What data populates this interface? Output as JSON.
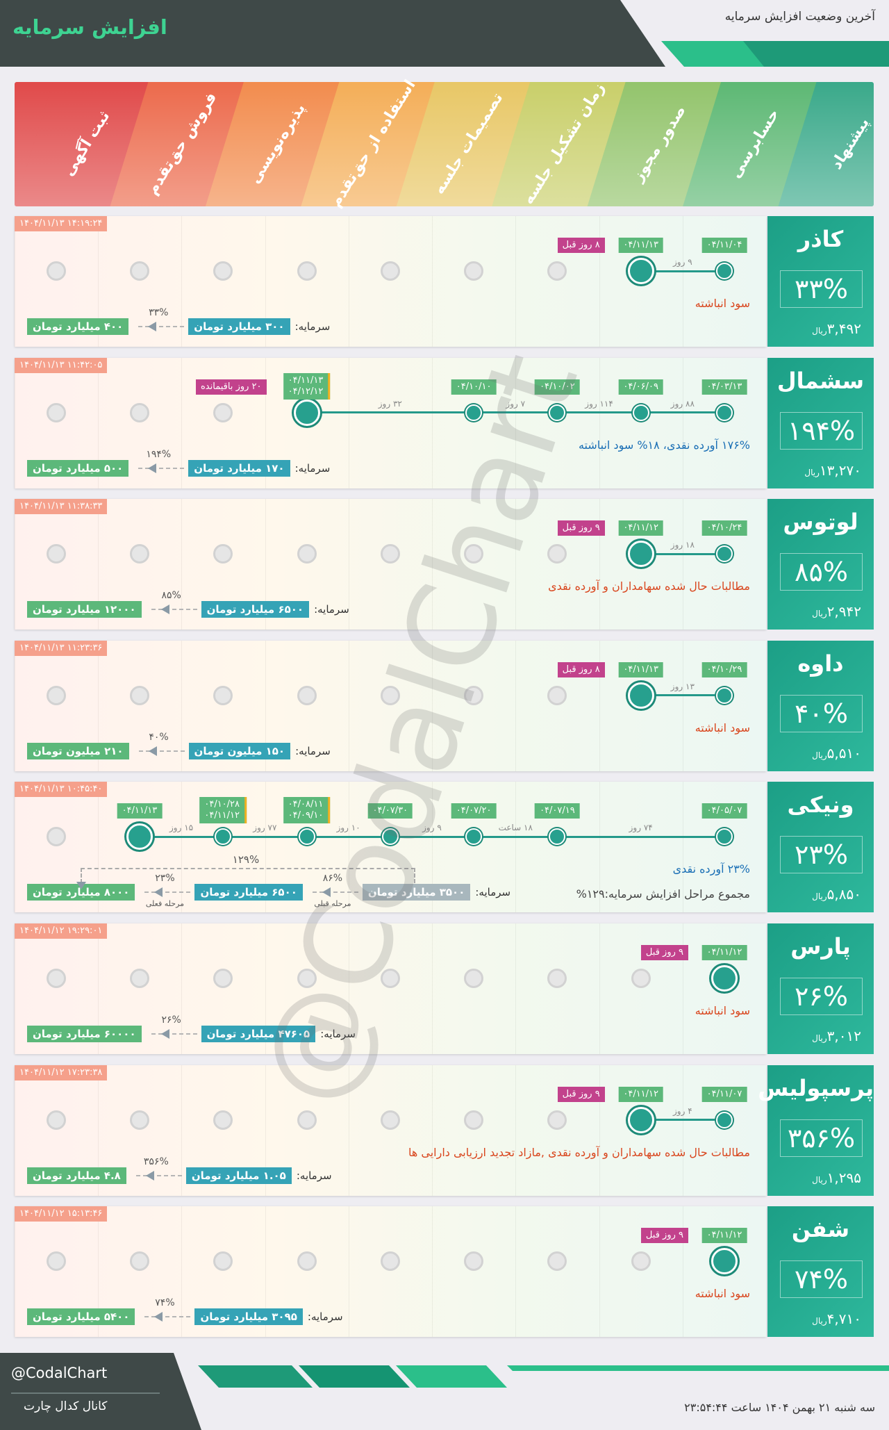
{
  "header": {
    "title": "افزایش سرمایه",
    "subtitle": "آخرین وضعیت افزایش سرمایه"
  },
  "stages": [
    "پیشنهاد",
    "حسابرسی",
    "صدور مجوز",
    "زمان تشکیل جلسه",
    "تصمیمات جلسه",
    "استفاده از حق‌تقدم",
    "پذیره‌نویسی",
    "فروش حق‌تقدم",
    "ثبت آگهی"
  ],
  "currency": "ریال",
  "capital_label": "سرمایه:",
  "watermark": "@CodalChart",
  "companies": [
    {
      "name": "کاذر",
      "percent": "۳۳%",
      "price": "۳,۴۹۲",
      "timestamp": "۱۴۰۴/۱۱/۱۳ ۱۴:۱۹:۲۴",
      "milestones": [
        [
          "۰۴/۱۱/۰۴"
        ],
        [
          "۰۴/۱۱/۱۳"
        ]
      ],
      "gaps": [
        "۹ روز"
      ],
      "badge": "۸ روز قبل",
      "description": [
        "سود انباشته"
      ],
      "capital": {
        "current": "۳۰۰ میلیارد تومان",
        "change": "۳۳%",
        "new": "۴۰۰ میلیارد تومان"
      }
    },
    {
      "name": "سشمال",
      "percent": "۱۹۴%",
      "price": "۱۳,۲۷۰",
      "timestamp": "۱۴۰۴/۱۱/۱۳ ۱۱:۴۲:۰۵",
      "milestones": [
        [
          "۰۴/۰۳/۱۳"
        ],
        [
          "۰۴/۰۶/۰۹"
        ],
        [
          "۰۴/۱۰/۰۲"
        ],
        [
          "۰۴/۱۰/۱۰"
        ],
        null,
        [
          "۰۴/۱۱/۱۳",
          "۰۴/۱۲/۱۲"
        ]
      ],
      "gaps": [
        "۸۸ روز",
        "۱۱۴ روز",
        "۷ روز",
        "۳۲ روز"
      ],
      "badge": "۲۰ روز باقیمانده",
      "description": [
        "۱۷۶% آورده نقدی، ۱۸% سود انباشته"
      ],
      "capital": {
        "current": "۱۷۰ میلیارد تومان",
        "change": "۱۹۴%",
        "new": "۵۰۰ میلیارد تومان"
      }
    },
    {
      "name": "لوتوس",
      "percent": "۸۵%",
      "price": "۲,۹۴۲",
      "timestamp": "۱۴۰۴/۱۱/۱۳ ۱۱:۳۸:۳۳",
      "milestones": [
        [
          "۰۴/۱۰/۲۴"
        ],
        [
          "۰۴/۱۱/۱۲"
        ]
      ],
      "gaps": [
        "۱۸ روز"
      ],
      "badge": "۹ روز قبل",
      "description": [
        "مطالبات حال شده سهامداران و آورده نقدی"
      ],
      "capital": {
        "current": "۶۵۰۰ میلیارد تومان",
        "change": "۸۵%",
        "new": "۱۲۰۰۰ میلیارد تومان"
      }
    },
    {
      "name": "داوه",
      "percent": "۴۰%",
      "price": "۵,۵۱۰",
      "timestamp": "۱۴۰۴/۱۱/۱۳ ۱۱:۲۳:۳۶",
      "milestones": [
        [
          "۰۴/۱۰/۲۹"
        ],
        [
          "۰۴/۱۱/۱۳"
        ]
      ],
      "gaps": [
        "۱۳ روز"
      ],
      "badge": "۸ روز قبل",
      "description": [
        "سود انباشته"
      ],
      "capital": {
        "current": "۱۵۰ میلیون تومان",
        "change": "۴۰%",
        "new": "۲۱۰ میلیون تومان"
      }
    },
    {
      "name": "ونیکی",
      "percent": "۲۳%",
      "price": "۵,۸۵۰",
      "timestamp": "۱۴۰۴/۱۱/۱۳ ۱۰:۴۵:۴۰",
      "milestones": [
        [
          "۰۴/۰۵/۰۷"
        ],
        null,
        [
          "۰۴/۰۷/۱۹"
        ],
        [
          "۰۴/۰۷/۲۰"
        ],
        [
          "۰۴/۰۷/۳۰"
        ],
        [
          "۰۴/۰۸/۱۱",
          "۰۴/۰۹/۱۰"
        ],
        [
          "۰۴/۱۰/۲۸",
          "۰۴/۱۱/۱۲"
        ],
        [
          "۰۴/۱۱/۱۳"
        ]
      ],
      "gaps": [
        "۷۴ روز",
        "۱۸ ساعت",
        "۹ روز",
        "۱۰ روز",
        "۷۷ روز",
        "۱۵ روز"
      ],
      "badge": null,
      "description": [
        "۲۳% آورده نقدی",
        "مجموع مراحل افزایش سرمایه:۱۲۹%"
      ],
      "capital": {
        "previous": "۳۵۰۰ میلیارد تومان",
        "previous_change": "۸۶%",
        "previous_note": "مرحله قبلی",
        "current": "۶۵۰۰ میلیارد تومان",
        "change": "۲۳%",
        "current_note": "مرحله فعلی",
        "new": "۸۰۰۰ میلیارد تومان",
        "total_change": "۱۲۹%"
      }
    },
    {
      "name": "پارس",
      "percent": "۲۶%",
      "price": "۳,۰۱۲",
      "timestamp": "۱۴۰۴/۱۱/۱۲ ۱۹:۲۹:۰۱",
      "milestones": [
        [
          "۰۴/۱۱/۱۲"
        ]
      ],
      "gaps": [],
      "badge": "۹ روز قبل",
      "description": [
        "سود انباشته"
      ],
      "capital": {
        "current": "۴۷۶۰۵ میلیارد تومان",
        "change": "۲۶%",
        "new": "۶۰۰۰۰ میلیارد تومان"
      }
    },
    {
      "name": "پرسپولیس",
      "percent": "۳۵۶%",
      "price": "۱,۲۹۵",
      "timestamp": "۱۴۰۴/۱۱/۱۲ ۱۷:۲۳:۳۸",
      "milestones": [
        [
          "۰۴/۱۱/۰۷"
        ],
        [
          "۰۴/۱۱/۱۲"
        ]
      ],
      "gaps": [
        "۴ روز"
      ],
      "badge": "۹ روز قبل",
      "description": [
        "مطالبات حال شده سهامداران و آورده نقدی ,مازاد تجدید ارزیابی دارایی ها"
      ],
      "capital": {
        "current": "۱.۰۵ میلیارد تومان",
        "change": "۳۵۶%",
        "new": "۴.۸ میلیارد تومان"
      }
    },
    {
      "name": "شفن",
      "percent": "۷۴%",
      "price": "۴,۷۱۰",
      "timestamp": "۱۴۰۴/۱۱/۱۲ ۱۵:۱۳:۴۶",
      "milestones": [
        [
          "۰۴/۱۱/۱۲"
        ]
      ],
      "gaps": [],
      "badge": "۹ روز قبل",
      "description": [
        "سود انباشته"
      ],
      "capital": {
        "current": "۳۰۹۵ میلیارد تومان",
        "change": "۷۴%",
        "new": "۵۴۰۰ میلیارد تومان"
      }
    }
  ],
  "footer": {
    "handle": "@CodalChart",
    "channel": "کانال کدال چارت",
    "datetime": "سه شنبه ۲۱ بهمن ۱۴۰۴ ساعت ۲۳:۵۴:۴۴"
  }
}
